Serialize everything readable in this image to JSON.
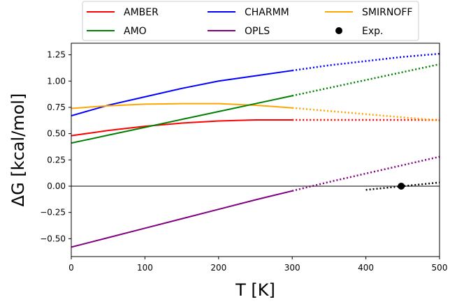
{
  "chart_data": {
    "type": "line",
    "title": "",
    "xlabel": "T [K]",
    "ylabel": "ΔG [kcal/mol]",
    "xlim": [
      0,
      500
    ],
    "ylim": [
      -0.67,
      1.36
    ],
    "xticks": [
      0,
      100,
      200,
      300,
      400,
      500
    ],
    "xtick_labels": [
      "0",
      "100",
      "200",
      "300",
      "400",
      "500"
    ],
    "yticks": [
      -0.5,
      -0.25,
      0.0,
      0.25,
      0.5,
      0.75,
      1.0,
      1.25
    ],
    "ytick_labels": [
      "−0.50",
      "−0.25",
      "0.00",
      "0.25",
      "0.50",
      "0.75",
      "1.00",
      "1.25"
    ],
    "legend_position": "top-center, outside plot",
    "series": [
      {
        "name": "AMBER",
        "color": "#ff0000",
        "x": [
          0,
          50,
          100,
          150,
          200,
          250,
          300
        ],
        "y": [
          0.48,
          0.53,
          0.57,
          0.6,
          0.62,
          0.63,
          0.63
        ],
        "x_extrapolated": [
          300,
          350,
          400,
          450,
          500
        ],
        "y_extrapolated": [
          0.63,
          0.63,
          0.63,
          0.63,
          0.63
        ]
      },
      {
        "name": "CHARMM",
        "color": "#0000ff",
        "x": [
          0,
          50,
          100,
          150,
          200,
          250,
          300
        ],
        "y": [
          0.67,
          0.77,
          0.85,
          0.93,
          1.0,
          1.05,
          1.1
        ],
        "x_extrapolated": [
          300,
          350,
          400,
          450,
          500
        ],
        "y_extrapolated": [
          1.1,
          1.15,
          1.19,
          1.23,
          1.26
        ]
      },
      {
        "name": "SMIRNOFF",
        "color": "#ffa500",
        "x": [
          0,
          50,
          100,
          150,
          200,
          250,
          300
        ],
        "y": [
          0.74,
          0.765,
          0.78,
          0.785,
          0.785,
          0.77,
          0.745
        ],
        "x_extrapolated": [
          300,
          350,
          400,
          450,
          500
        ],
        "y_extrapolated": [
          0.745,
          0.715,
          0.685,
          0.655,
          0.625
        ]
      },
      {
        "name": "AMO",
        "color": "#008000",
        "x": [
          0,
          50,
          100,
          150,
          200,
          250,
          300
        ],
        "y": [
          0.41,
          0.485,
          0.56,
          0.635,
          0.71,
          0.785,
          0.86
        ],
        "x_extrapolated": [
          300,
          350,
          400,
          450,
          500
        ],
        "y_extrapolated": [
          0.86,
          0.935,
          1.01,
          1.085,
          1.16
        ]
      },
      {
        "name": "OPLS",
        "color": "#800080",
        "x": [
          0,
          50,
          100,
          150,
          200,
          250,
          300
        ],
        "y": [
          -0.58,
          -0.49,
          -0.4,
          -0.31,
          -0.22,
          -0.13,
          -0.045
        ],
        "x_extrapolated": [
          300,
          350,
          400,
          450,
          500
        ],
        "y_extrapolated": [
          -0.045,
          0.04,
          0.12,
          0.2,
          0.28
        ]
      }
    ],
    "experimental": {
      "name": "Exp.",
      "color": "#000000",
      "point": {
        "x": 448,
        "y": 0.0
      },
      "x_fit": [
        400,
        500
      ],
      "y_fit": [
        -0.035,
        0.035
      ]
    },
    "reference_line": {
      "y": 0.0,
      "color": "#808080"
    },
    "legend": [
      {
        "label": "AMBER",
        "color": "#ff0000",
        "style": "line"
      },
      {
        "label": "AMO",
        "color": "#008000",
        "style": "line"
      },
      {
        "label": "CHARMM",
        "color": "#0000ff",
        "style": "line"
      },
      {
        "label": "OPLS",
        "color": "#800080",
        "style": "line"
      },
      {
        "label": "SMIRNOFF",
        "color": "#ffa500",
        "style": "line"
      },
      {
        "label": "Exp.",
        "color": "#000000",
        "style": "marker"
      }
    ]
  }
}
